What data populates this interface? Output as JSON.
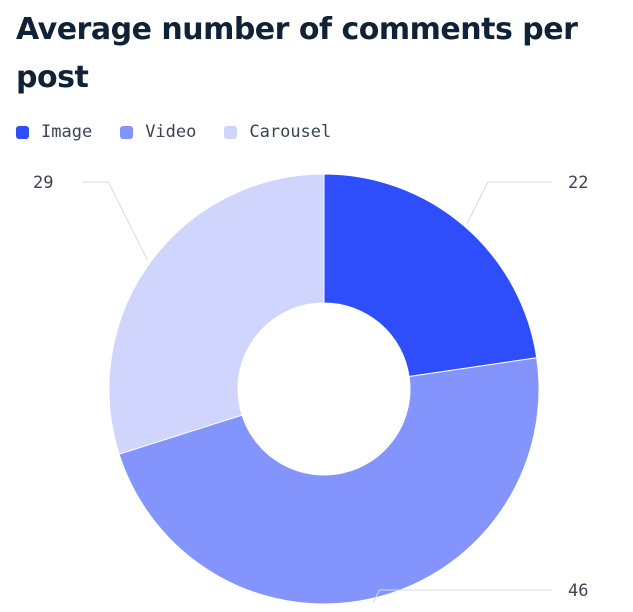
{
  "title": "Average number of comments per post",
  "colors": {
    "image": "#2e4efc",
    "video": "#8395fc",
    "carousel": "#cfd5fd"
  },
  "chart_data": {
    "type": "pie",
    "variant": "donut",
    "title": "Average number of comments per post",
    "legend_position": "top-left",
    "categories": [
      "Image",
      "Video",
      "Carousel"
    ],
    "values": [
      22,
      46,
      29
    ],
    "colors": [
      "#2e4efc",
      "#8395fc",
      "#cfd5fd"
    ]
  }
}
